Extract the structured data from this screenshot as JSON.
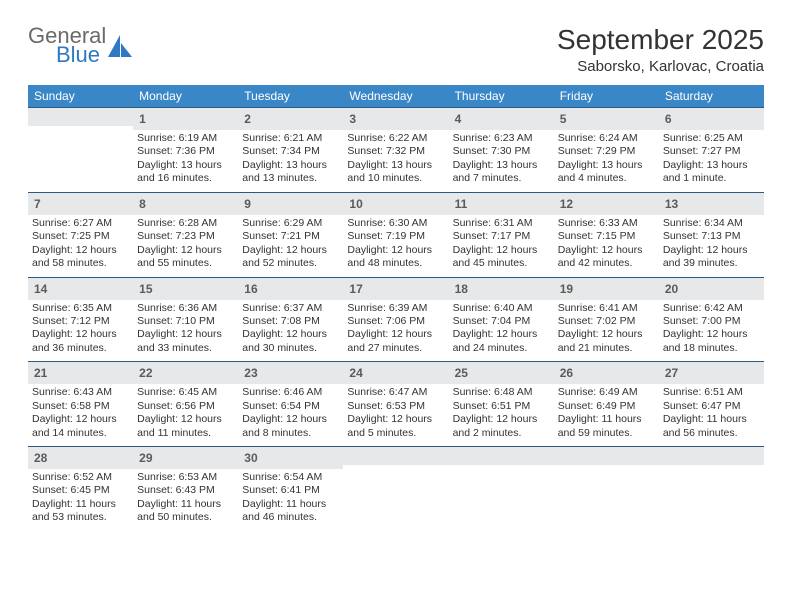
{
  "brand": {
    "line1": "General",
    "line2": "Blue",
    "logo_color": "#2f78c2"
  },
  "title": "September 2025",
  "subtitle": "Saborsko, Karlovac, Croatia",
  "colors": {
    "header_bg": "#3a87c8",
    "header_text": "#ffffff",
    "daybar_bg": "#e7e8e9",
    "divider": "#2b5a84",
    "text": "#333333"
  },
  "dow": [
    "Sunday",
    "Monday",
    "Tuesday",
    "Wednesday",
    "Thursday",
    "Friday",
    "Saturday"
  ],
  "start_offset": 1,
  "days": [
    {
      "n": 1,
      "sr": "6:19 AM",
      "ss": "7:36 PM",
      "dl": "13 hours and 16 minutes."
    },
    {
      "n": 2,
      "sr": "6:21 AM",
      "ss": "7:34 PM",
      "dl": "13 hours and 13 minutes."
    },
    {
      "n": 3,
      "sr": "6:22 AM",
      "ss": "7:32 PM",
      "dl": "13 hours and 10 minutes."
    },
    {
      "n": 4,
      "sr": "6:23 AM",
      "ss": "7:30 PM",
      "dl": "13 hours and 7 minutes."
    },
    {
      "n": 5,
      "sr": "6:24 AM",
      "ss": "7:29 PM",
      "dl": "13 hours and 4 minutes."
    },
    {
      "n": 6,
      "sr": "6:25 AM",
      "ss": "7:27 PM",
      "dl": "13 hours and 1 minute."
    },
    {
      "n": 7,
      "sr": "6:27 AM",
      "ss": "7:25 PM",
      "dl": "12 hours and 58 minutes."
    },
    {
      "n": 8,
      "sr": "6:28 AM",
      "ss": "7:23 PM",
      "dl": "12 hours and 55 minutes."
    },
    {
      "n": 9,
      "sr": "6:29 AM",
      "ss": "7:21 PM",
      "dl": "12 hours and 52 minutes."
    },
    {
      "n": 10,
      "sr": "6:30 AM",
      "ss": "7:19 PM",
      "dl": "12 hours and 48 minutes."
    },
    {
      "n": 11,
      "sr": "6:31 AM",
      "ss": "7:17 PM",
      "dl": "12 hours and 45 minutes."
    },
    {
      "n": 12,
      "sr": "6:33 AM",
      "ss": "7:15 PM",
      "dl": "12 hours and 42 minutes."
    },
    {
      "n": 13,
      "sr": "6:34 AM",
      "ss": "7:13 PM",
      "dl": "12 hours and 39 minutes."
    },
    {
      "n": 14,
      "sr": "6:35 AM",
      "ss": "7:12 PM",
      "dl": "12 hours and 36 minutes."
    },
    {
      "n": 15,
      "sr": "6:36 AM",
      "ss": "7:10 PM",
      "dl": "12 hours and 33 minutes."
    },
    {
      "n": 16,
      "sr": "6:37 AM",
      "ss": "7:08 PM",
      "dl": "12 hours and 30 minutes."
    },
    {
      "n": 17,
      "sr": "6:39 AM",
      "ss": "7:06 PM",
      "dl": "12 hours and 27 minutes."
    },
    {
      "n": 18,
      "sr": "6:40 AM",
      "ss": "7:04 PM",
      "dl": "12 hours and 24 minutes."
    },
    {
      "n": 19,
      "sr": "6:41 AM",
      "ss": "7:02 PM",
      "dl": "12 hours and 21 minutes."
    },
    {
      "n": 20,
      "sr": "6:42 AM",
      "ss": "7:00 PM",
      "dl": "12 hours and 18 minutes."
    },
    {
      "n": 21,
      "sr": "6:43 AM",
      "ss": "6:58 PM",
      "dl": "12 hours and 14 minutes."
    },
    {
      "n": 22,
      "sr": "6:45 AM",
      "ss": "6:56 PM",
      "dl": "12 hours and 11 minutes."
    },
    {
      "n": 23,
      "sr": "6:46 AM",
      "ss": "6:54 PM",
      "dl": "12 hours and 8 minutes."
    },
    {
      "n": 24,
      "sr": "6:47 AM",
      "ss": "6:53 PM",
      "dl": "12 hours and 5 minutes."
    },
    {
      "n": 25,
      "sr": "6:48 AM",
      "ss": "6:51 PM",
      "dl": "12 hours and 2 minutes."
    },
    {
      "n": 26,
      "sr": "6:49 AM",
      "ss": "6:49 PM",
      "dl": "11 hours and 59 minutes."
    },
    {
      "n": 27,
      "sr": "6:51 AM",
      "ss": "6:47 PM",
      "dl": "11 hours and 56 minutes."
    },
    {
      "n": 28,
      "sr": "6:52 AM",
      "ss": "6:45 PM",
      "dl": "11 hours and 53 minutes."
    },
    {
      "n": 29,
      "sr": "6:53 AM",
      "ss": "6:43 PM",
      "dl": "11 hours and 50 minutes."
    },
    {
      "n": 30,
      "sr": "6:54 AM",
      "ss": "6:41 PM",
      "dl": "11 hours and 46 minutes."
    }
  ],
  "labels": {
    "sunrise": "Sunrise:",
    "sunset": "Sunset:",
    "daylight": "Daylight:"
  }
}
